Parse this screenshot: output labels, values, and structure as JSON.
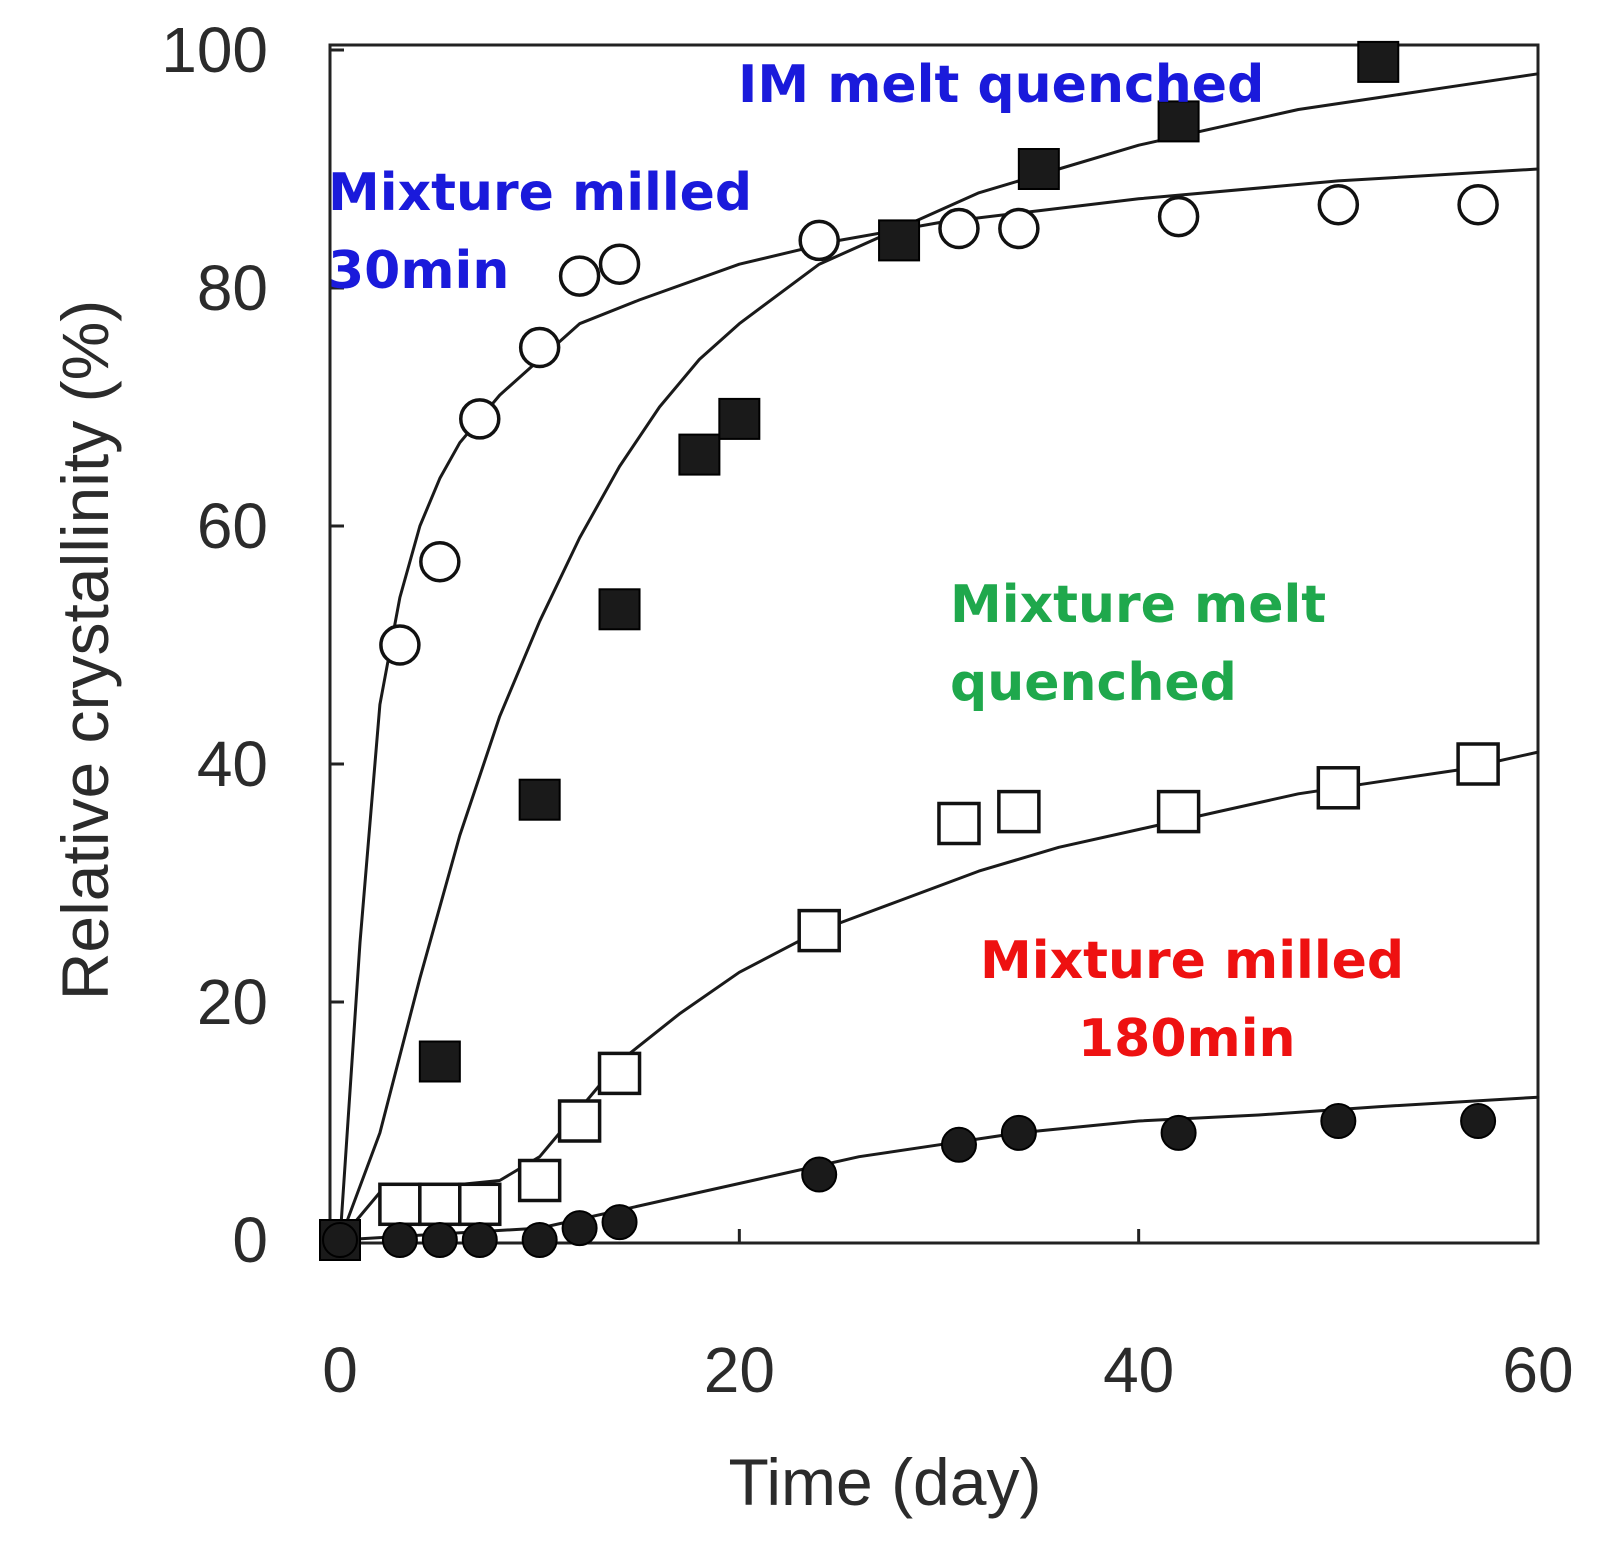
{
  "chart_data": {
    "type": "scatter",
    "title": "",
    "xlabel": "Time (day)",
    "ylabel": "Relative crystallinity (%)",
    "xlim": [
      0,
      60
    ],
    "ylim": [
      0,
      100
    ],
    "xticks": [
      0,
      20,
      40,
      60
    ],
    "yticks": [
      0,
      20,
      40,
      60,
      80,
      100
    ],
    "grid": false,
    "series": [
      {
        "name": "IM melt quenched",
        "marker": "filled-square",
        "points": [
          [
            0,
            0
          ],
          [
            5,
            15
          ],
          [
            10,
            37
          ],
          [
            14,
            53
          ],
          [
            18,
            66
          ],
          [
            20,
            69
          ],
          [
            28,
            84
          ],
          [
            35,
            90
          ],
          [
            42,
            94
          ],
          [
            52,
            99
          ]
        ],
        "fit": [
          [
            0,
            0
          ],
          [
            2,
            9
          ],
          [
            4,
            22
          ],
          [
            6,
            34
          ],
          [
            8,
            44
          ],
          [
            10,
            52
          ],
          [
            12,
            59
          ],
          [
            14,
            65
          ],
          [
            16,
            70
          ],
          [
            18,
            74
          ],
          [
            20,
            77
          ],
          [
            24,
            82
          ],
          [
            28,
            85
          ],
          [
            32,
            88
          ],
          [
            36,
            90
          ],
          [
            40,
            92
          ],
          [
            44,
            93.5
          ],
          [
            48,
            95
          ],
          [
            52,
            96
          ],
          [
            56,
            97
          ],
          [
            60,
            98
          ]
        ]
      },
      {
        "name": "Mixture milled 30min",
        "marker": "open-circle",
        "points": [
          [
            3,
            50
          ],
          [
            5,
            57
          ],
          [
            7,
            69
          ],
          [
            10,
            75
          ],
          [
            12,
            81
          ],
          [
            14,
            82
          ],
          [
            24,
            84
          ],
          [
            31,
            85
          ],
          [
            34,
            85
          ],
          [
            42,
            86
          ],
          [
            50,
            87
          ],
          [
            57,
            87
          ]
        ],
        "fit": [
          [
            0,
            0
          ],
          [
            1,
            25
          ],
          [
            2,
            45
          ],
          [
            3,
            54
          ],
          [
            4,
            60
          ],
          [
            5,
            64
          ],
          [
            6,
            67
          ],
          [
            8,
            71
          ],
          [
            10,
            74
          ],
          [
            12,
            77
          ],
          [
            15,
            79
          ],
          [
            20,
            82
          ],
          [
            25,
            84
          ],
          [
            30,
            85.5
          ],
          [
            35,
            86.5
          ],
          [
            40,
            87.5
          ],
          [
            50,
            89
          ],
          [
            60,
            90
          ]
        ]
      },
      {
        "name": "Mixture melt quenched",
        "marker": "open-square",
        "points": [
          [
            3,
            3
          ],
          [
            5,
            3
          ],
          [
            7,
            3
          ],
          [
            10,
            5
          ],
          [
            12,
            10
          ],
          [
            14,
            14
          ],
          [
            24,
            26
          ],
          [
            31,
            35
          ],
          [
            34,
            36
          ],
          [
            42,
            36
          ],
          [
            50,
            38
          ],
          [
            57,
            40
          ]
        ],
        "fit": [
          [
            0,
            0
          ],
          [
            2,
            4
          ],
          [
            5,
            4.5
          ],
          [
            8,
            5
          ],
          [
            10,
            7
          ],
          [
            12,
            11
          ],
          [
            14,
            15
          ],
          [
            17,
            19
          ],
          [
            20,
            22.5
          ],
          [
            24,
            26
          ],
          [
            28,
            28.5
          ],
          [
            32,
            31
          ],
          [
            36,
            33
          ],
          [
            40,
            34.5
          ],
          [
            44,
            36
          ],
          [
            48,
            37.5
          ],
          [
            52,
            38.5
          ],
          [
            56,
            39.5
          ],
          [
            60,
            41
          ]
        ]
      },
      {
        "name": "Mixture milled 180min",
        "marker": "filled-circle",
        "points": [
          [
            0,
            0
          ],
          [
            3,
            0
          ],
          [
            5,
            0
          ],
          [
            7,
            0
          ],
          [
            10,
            0
          ],
          [
            12,
            1
          ],
          [
            14,
            1.5
          ],
          [
            24,
            5.5
          ],
          [
            31,
            8
          ],
          [
            34,
            9
          ],
          [
            42,
            9
          ],
          [
            50,
            10
          ],
          [
            57,
            10
          ]
        ],
        "fit": [
          [
            0,
            0
          ],
          [
            10,
            1
          ],
          [
            14,
            2.5
          ],
          [
            18,
            4
          ],
          [
            22,
            5.5
          ],
          [
            26,
            7
          ],
          [
            30,
            8
          ],
          [
            34,
            9
          ],
          [
            40,
            10
          ],
          [
            46,
            10.5
          ],
          [
            52,
            11.2
          ],
          [
            60,
            12
          ]
        ]
      }
    ],
    "annotations": [
      {
        "text": "IM melt quenched",
        "color": "#1a1adb"
      },
      {
        "text": "Mixture milled",
        "color": "#1a1adb"
      },
      {
        "text": "30min",
        "color": "#1a1adb"
      },
      {
        "text": "Mixture melt",
        "color": "#1fa84c"
      },
      {
        "text": "quenched",
        "color": "#1fa84c"
      },
      {
        "text": "Mixture milled",
        "color": "#ee1111"
      },
      {
        "text": "180min",
        "color": "#ee1111"
      }
    ]
  }
}
